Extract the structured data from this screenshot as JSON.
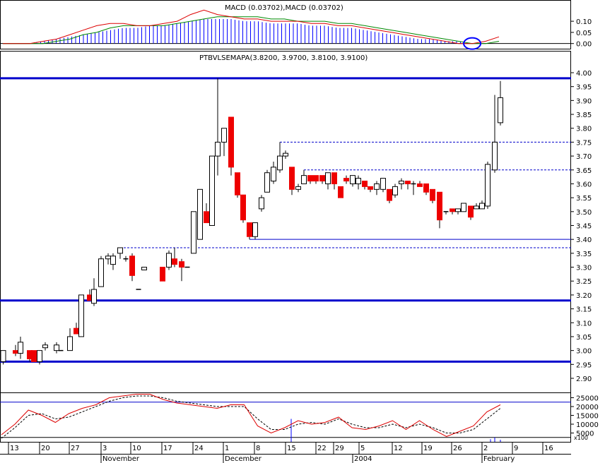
{
  "chart_data": [
    {
      "type": "line",
      "panel": "macd",
      "title": "MACD (0.03702),MACD (0.03702)",
      "y_ticks": [
        "0.10",
        "0.05",
        "0.00"
      ],
      "ylim": [
        -0.02,
        0.17
      ],
      "colors": {
        "macd": "#dd0000",
        "signal": "#008800",
        "histogram": "#0000ff",
        "marker": "#0000ff"
      },
      "macd": [
        0.0,
        0.0,
        0.0,
        0.01,
        0.02,
        0.04,
        0.06,
        0.08,
        0.09,
        0.09,
        0.08,
        0.08,
        0.09,
        0.1,
        0.13,
        0.15,
        0.13,
        0.12,
        0.11,
        0.11,
        0.1,
        0.1,
        0.1,
        0.09,
        0.09,
        0.08,
        0.08,
        0.07,
        0.06,
        0.05,
        0.04,
        0.03,
        0.02,
        0.01,
        0.0,
        0.0,
        0.01,
        0.03
      ],
      "signal": [
        0.0,
        0.0,
        0.0,
        0.0,
        0.01,
        0.02,
        0.04,
        0.05,
        0.07,
        0.08,
        0.08,
        0.08,
        0.08,
        0.09,
        0.1,
        0.11,
        0.12,
        0.12,
        0.12,
        0.12,
        0.11,
        0.11,
        0.1,
        0.1,
        0.1,
        0.09,
        0.09,
        0.08,
        0.07,
        0.06,
        0.05,
        0.04,
        0.03,
        0.02,
        0.01,
        0.0,
        0.0,
        0.01
      ],
      "histogram": [
        0.0,
        0.0,
        0.0,
        0.01,
        0.02,
        0.03,
        0.04,
        0.05,
        0.06,
        0.07,
        0.07,
        0.08,
        0.08,
        0.09,
        0.1,
        0.11,
        0.11,
        0.11,
        0.1,
        0.1,
        0.09,
        0.09,
        0.09,
        0.08,
        0.08,
        0.07,
        0.07,
        0.06,
        0.05,
        0.04,
        0.03,
        0.02,
        0.02,
        0.01,
        0.01,
        0.0,
        0.0,
        0.0
      ]
    },
    {
      "type": "candlestick",
      "panel": "price",
      "title": "PTBVLSEMAPA(3.8200, 3.9700, 3.8100, 3.9100)",
      "y_ticks": [
        "4.00",
        "3.95",
        "3.90",
        "3.85",
        "3.80",
        "3.75",
        "3.70",
        "3.65",
        "3.60",
        "3.55",
        "3.50",
        "3.45",
        "3.40",
        "3.35",
        "3.30",
        "3.25",
        "3.20",
        "3.15",
        "3.10",
        "3.05",
        "3.00",
        "2.95",
        "2.90"
      ],
      "ylim": [
        2.87,
        4.03
      ],
      "colors": {
        "up_fill": "#ffffff",
        "down_fill": "#ee0000",
        "neutral_fill": "#000000",
        "outline": "#000000",
        "support_line": "#0000cc",
        "dashed_line": "#0000cc"
      },
      "candles": [
        {
          "x": 4.5,
          "o": 2.96,
          "h": 3.0,
          "l": 2.95,
          "c": 3.0
        },
        {
          "x": 22,
          "o": 3.0,
          "h": 3.02,
          "l": 2.98,
          "c": 2.99
        },
        {
          "x": 29,
          "o": 2.99,
          "h": 3.05,
          "l": 2.97,
          "c": 3.03
        },
        {
          "x": 42,
          "o": 3.0,
          "h": 3.0,
          "l": 2.96,
          "c": 2.97
        },
        {
          "x": 48,
          "o": 3.0,
          "h": 3.0,
          "l": 2.96,
          "c": 2.96
        },
        {
          "x": 56,
          "o": 2.96,
          "h": 3.0,
          "l": 2.95,
          "c": 3.0
        },
        {
          "x": 64,
          "o": 3.01,
          "h": 3.03,
          "l": 3.0,
          "c": 3.02
        },
        {
          "x": 80,
          "o": 3.0,
          "h": 3.03,
          "l": 2.99,
          "c": 3.02
        },
        {
          "x": 86,
          "o": 3.0,
          "h": 3.0,
          "l": 3.0,
          "c": 3.0
        },
        {
          "x": 99,
          "o": 3.0,
          "h": 3.08,
          "l": 3.0,
          "c": 3.05
        },
        {
          "x": 108,
          "o": 3.08,
          "h": 3.1,
          "l": 3.06,
          "c": 3.06
        },
        {
          "x": 115,
          "o": 3.05,
          "h": 3.2,
          "l": 3.05,
          "c": 3.2
        },
        {
          "x": 127,
          "o": 3.2,
          "h": 3.22,
          "l": 3.18,
          "c": 3.18
        },
        {
          "x": 133,
          "o": 3.17,
          "h": 3.26,
          "l": 3.16,
          "c": 3.22
        },
        {
          "x": 143,
          "o": 3.23,
          "h": 3.34,
          "l": 3.23,
          "c": 3.33
        },
        {
          "x": 153,
          "o": 3.33,
          "h": 3.35,
          "l": 3.31,
          "c": 3.34
        },
        {
          "x": 160,
          "o": 3.31,
          "h": 3.35,
          "l": 3.29,
          "c": 3.34
        },
        {
          "x": 170,
          "o": 3.35,
          "h": 3.37,
          "l": 3.33,
          "c": 3.37
        },
        {
          "x": 178,
          "o": 3.33,
          "h": 3.34,
          "l": 3.32,
          "c": 3.33
        },
        {
          "x": 187,
          "o": 3.34,
          "h": 3.35,
          "l": 3.25,
          "c": 3.27
        },
        {
          "x": 196,
          "o": 3.22,
          "h": 3.22,
          "l": 3.22,
          "c": 3.22
        },
        {
          "x": 204,
          "o": 3.29,
          "h": 3.3,
          "l": 3.29,
          "c": 3.3
        },
        {
          "x": 230,
          "o": 3.3,
          "h": 3.3,
          "l": 3.25,
          "c": 3.25
        },
        {
          "x": 239,
          "o": 3.3,
          "h": 3.36,
          "l": 3.29,
          "c": 3.35
        },
        {
          "x": 247,
          "o": 3.33,
          "h": 3.37,
          "l": 3.3,
          "c": 3.31
        },
        {
          "x": 257,
          "o": 3.32,
          "h": 3.33,
          "l": 3.25,
          "c": 3.3
        },
        {
          "x": 265,
          "o": 3.3,
          "h": 3.3,
          "l": 3.3,
          "c": 3.3
        },
        {
          "x": 274,
          "o": 3.35,
          "h": 3.5,
          "l": 3.35,
          "c": 3.5
        },
        {
          "x": 283,
          "o": 3.4,
          "h": 3.58,
          "l": 3.4,
          "c": 3.58
        },
        {
          "x": 292,
          "o": 3.5,
          "h": 3.53,
          "l": 3.46,
          "c": 3.46
        },
        {
          "x": 300,
          "o": 3.45,
          "h": 3.7,
          "l": 3.45,
          "c": 3.7
        },
        {
          "x": 308,
          "o": 3.7,
          "h": 3.98,
          "l": 3.63,
          "c": 3.75
        },
        {
          "x": 317,
          "o": 3.75,
          "h": 3.8,
          "l": 3.7,
          "c": 3.8
        },
        {
          "x": 327,
          "o": 3.84,
          "h": 3.84,
          "l": 3.63,
          "c": 3.66
        },
        {
          "x": 336,
          "o": 3.64,
          "h": 3.64,
          "l": 3.55,
          "c": 3.56
        },
        {
          "x": 344,
          "o": 3.56,
          "h": 3.56,
          "l": 3.46,
          "c": 3.47
        },
        {
          "x": 353,
          "o": 3.46,
          "h": 3.46,
          "l": 3.4,
          "c": 3.41
        },
        {
          "x": 361,
          "o": 3.41,
          "h": 3.46,
          "l": 3.4,
          "c": 3.46
        },
        {
          "x": 370,
          "o": 3.51,
          "h": 3.56,
          "l": 3.5,
          "c": 3.55
        },
        {
          "x": 378,
          "o": 3.57,
          "h": 3.65,
          "l": 3.57,
          "c": 3.64
        },
        {
          "x": 387,
          "o": 3.61,
          "h": 3.68,
          "l": 3.6,
          "c": 3.66
        },
        {
          "x": 396,
          "o": 3.65,
          "h": 3.75,
          "l": 3.64,
          "c": 3.7
        },
        {
          "x": 404,
          "o": 3.7,
          "h": 3.72,
          "l": 3.69,
          "c": 3.71
        },
        {
          "x": 413,
          "o": 3.66,
          "h": 3.66,
          "l": 3.56,
          "c": 3.58
        },
        {
          "x": 422,
          "o": 3.58,
          "h": 3.6,
          "l": 3.57,
          "c": 3.59
        },
        {
          "x": 430,
          "o": 3.6,
          "h": 3.65,
          "l": 3.6,
          "c": 3.63
        },
        {
          "x": 439,
          "o": 3.63,
          "h": 3.63,
          "l": 3.6,
          "c": 3.61
        },
        {
          "x": 447,
          "o": 3.63,
          "h": 3.63,
          "l": 3.6,
          "c": 3.61
        },
        {
          "x": 456,
          "o": 3.63,
          "h": 3.63,
          "l": 3.6,
          "c": 3.61
        },
        {
          "x": 464,
          "o": 3.6,
          "h": 3.64,
          "l": 3.58,
          "c": 3.64
        },
        {
          "x": 473,
          "o": 3.64,
          "h": 3.64,
          "l": 3.58,
          "c": 3.6
        },
        {
          "x": 482,
          "o": 3.59,
          "h": 3.59,
          "l": 3.55,
          "c": 3.55
        },
        {
          "x": 490,
          "o": 3.62,
          "h": 3.63,
          "l": 3.6,
          "c": 3.61
        },
        {
          "x": 499,
          "o": 3.6,
          "h": 3.63,
          "l": 3.59,
          "c": 3.63
        },
        {
          "x": 507,
          "o": 3.6,
          "h": 3.63,
          "l": 3.58,
          "c": 3.62
        },
        {
          "x": 516,
          "o": 3.61,
          "h": 3.61,
          "l": 3.58,
          "c": 3.59
        },
        {
          "x": 524,
          "o": 3.59,
          "h": 3.59,
          "l": 3.57,
          "c": 3.58
        },
        {
          "x": 533,
          "o": 3.58,
          "h": 3.61,
          "l": 3.56,
          "c": 3.6
        },
        {
          "x": 542,
          "o": 3.58,
          "h": 3.62,
          "l": 3.57,
          "c": 3.62
        },
        {
          "x": 551,
          "o": 3.58,
          "h": 3.58,
          "l": 3.53,
          "c": 3.54
        },
        {
          "x": 559,
          "o": 3.56,
          "h": 3.6,
          "l": 3.55,
          "c": 3.59
        },
        {
          "x": 568,
          "o": 3.6,
          "h": 3.62,
          "l": 3.58,
          "c": 3.61
        },
        {
          "x": 577,
          "o": 3.61,
          "h": 3.61,
          "l": 3.58,
          "c": 3.6
        },
        {
          "x": 585,
          "o": 3.6,
          "h": 3.61,
          "l": 3.56,
          "c": 3.6
        },
        {
          "x": 594,
          "o": 3.6,
          "h": 3.61,
          "l": 3.59,
          "c": 3.59
        },
        {
          "x": 603,
          "o": 3.6,
          "h": 3.6,
          "l": 3.56,
          "c": 3.57
        },
        {
          "x": 612,
          "o": 3.58,
          "h": 3.58,
          "l": 3.53,
          "c": 3.54
        },
        {
          "x": 622,
          "o": 3.57,
          "h": 3.57,
          "l": 3.44,
          "c": 3.47
        },
        {
          "x": 631,
          "o": 3.5,
          "h": 3.5,
          "l": 3.49,
          "c": 3.5
        },
        {
          "x": 640,
          "o": 3.51,
          "h": 3.51,
          "l": 3.49,
          "c": 3.5
        },
        {
          "x": 648,
          "o": 3.5,
          "h": 3.51,
          "l": 3.49,
          "c": 3.51
        },
        {
          "x": 656,
          "o": 3.5,
          "h": 3.53,
          "l": 3.5,
          "c": 3.53
        },
        {
          "x": 666,
          "o": 3.52,
          "h": 3.52,
          "l": 3.47,
          "c": 3.48
        },
        {
          "x": 674,
          "o": 3.51,
          "h": 3.53,
          "l": 3.51,
          "c": 3.52
        },
        {
          "x": 682,
          "o": 3.51,
          "h": 3.54,
          "l": 3.51,
          "c": 3.53
        },
        {
          "x": 690,
          "o": 3.52,
          "h": 3.68,
          "l": 3.51,
          "c": 3.67
        },
        {
          "x": 700,
          "o": 3.65,
          "h": 3.92,
          "l": 3.64,
          "c": 3.75
        },
        {
          "x": 708,
          "o": 3.82,
          "h": 3.97,
          "l": 3.81,
          "c": 3.91
        }
      ],
      "horizontal_lines": [
        {
          "y": 3.98,
          "style": "thick"
        },
        {
          "y": 3.18,
          "style": "thick"
        },
        {
          "y": 2.96,
          "style": "thick"
        },
        {
          "y": 3.75,
          "style": "dashed",
          "x_from": 396
        },
        {
          "y": 3.65,
          "style": "dashed",
          "x_from": 430
        },
        {
          "y": 3.4,
          "style": "thin",
          "x_from": 353
        },
        {
          "y": 3.37,
          "style": "dashed",
          "x_from": 170
        }
      ]
    },
    {
      "type": "line",
      "panel": "volume",
      "y_ticks": [
        "25000",
        "20000",
        "15000",
        "10000",
        "5000"
      ],
      "unit_label": "x100",
      "ylim": [
        0,
        28000
      ],
      "colors": {
        "line1": "#dd0000",
        "line2": "#000000",
        "volume_bars": "#0000ff"
      },
      "line1": [
        4000,
        10000,
        18000,
        15000,
        11000,
        16000,
        19000,
        21000,
        25000,
        26000,
        27000,
        27000,
        24000,
        22000,
        21000,
        20000,
        19000,
        21000,
        21000,
        9000,
        5000,
        8000,
        12000,
        10000,
        11000,
        14000,
        8000,
        7000,
        9000,
        12000,
        7000,
        12000,
        7000,
        3000,
        6000,
        9000,
        17000,
        21000
      ],
      "line2": [
        2000,
        8000,
        15000,
        16000,
        13000,
        14000,
        17000,
        20000,
        23000,
        25000,
        26000,
        26000,
        25000,
        23000,
        22000,
        21000,
        20000,
        20000,
        20000,
        13000,
        7000,
        7000,
        10000,
        11000,
        10000,
        13000,
        10000,
        8000,
        8000,
        10000,
        8000,
        10000,
        8000,
        5000,
        5000,
        7000,
        13000,
        19000
      ],
      "volume_bars": [
        {
          "x": 412,
          "v": 13000
        },
        {
          "x": 694,
          "v": 1500
        },
        {
          "x": 700,
          "v": 2500
        },
        {
          "x": 708,
          "v": 1200
        }
      ]
    }
  ],
  "x_axis": {
    "day_labels": [
      "13",
      "20",
      "27",
      "3",
      "10",
      "17",
      "24",
      "1",
      "8",
      "15",
      "22",
      "29",
      "5",
      "12",
      "19",
      "26",
      "2",
      "9",
      "16"
    ],
    "month_labels": [
      "November",
      "December",
      "2004",
      "February"
    ]
  }
}
